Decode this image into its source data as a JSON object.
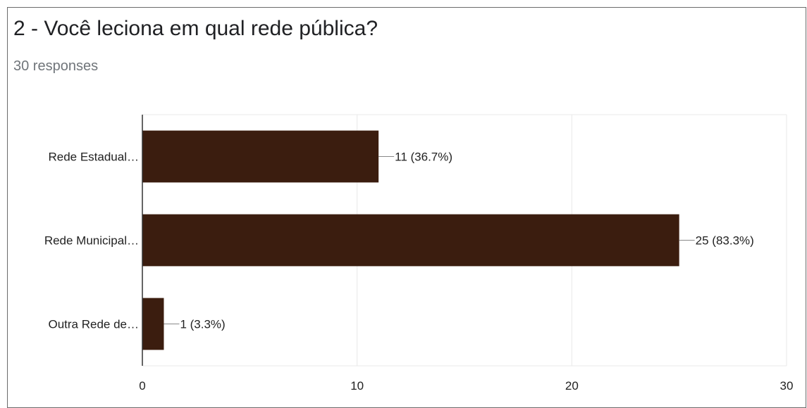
{
  "question_title": "2 - Você leciona em qual rede pública?",
  "responses_label": "30 responses",
  "colors": {
    "bar": "#3b1d0f",
    "grid": "#e8e8e8",
    "axis": "#333333",
    "text": "#222222",
    "border": "#6b6b6b"
  },
  "chart_data": {
    "type": "bar",
    "orientation": "horizontal",
    "categories": [
      "Rede Estadual…",
      "Rede Municipal…",
      "Outra Rede de…"
    ],
    "values": [
      11,
      25,
      1
    ],
    "data_labels": [
      "11 (36.7%)",
      "25 (83.3%)",
      "1 (3.3%)"
    ],
    "xlim": [
      0,
      30
    ],
    "xticks": [
      0,
      10,
      20,
      30
    ],
    "grid": true,
    "legend": "none"
  }
}
